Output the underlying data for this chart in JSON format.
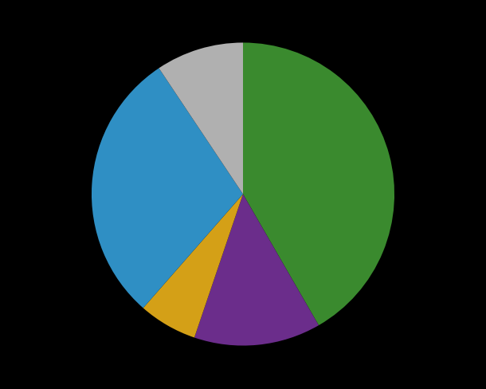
{
  "wedge_values": [
    40,
    13,
    6,
    28,
    9
  ],
  "wedge_colors": [
    "#3a8a2e",
    "#6b2d8b",
    "#d4a017",
    "#2f8fc4",
    "#b0b0b0"
  ],
  "background_color": "#000000",
  "startangle": 90,
  "figsize": [
    6.1,
    4.89
  ],
  "dpi": 100
}
